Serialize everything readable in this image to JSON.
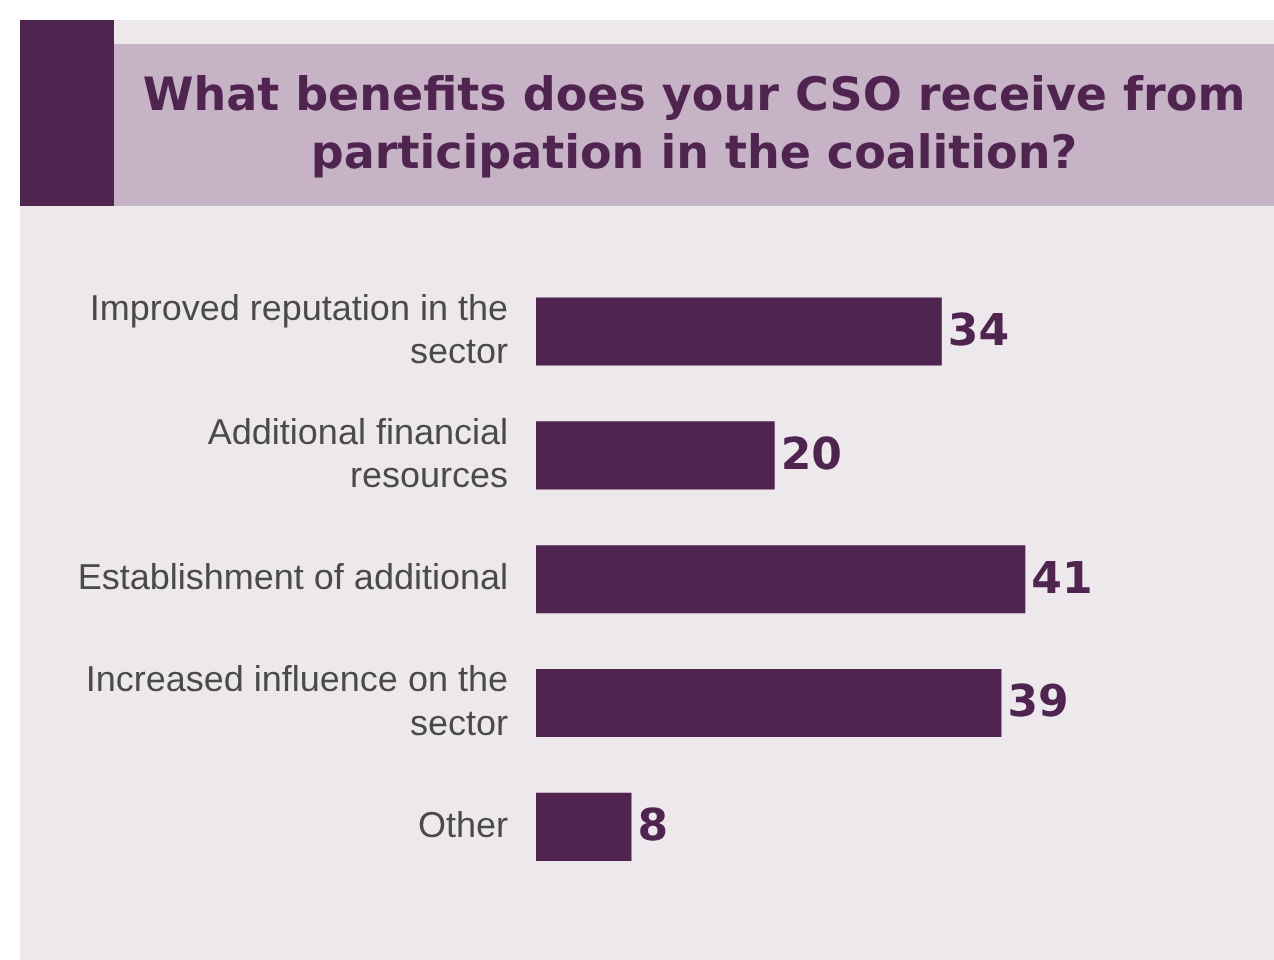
{
  "chart_data": {
    "type": "bar",
    "orientation": "horizontal",
    "title": "What benefits does your CSO receive from participation in the coalition?",
    "categories": [
      "Improved reputation in the sector",
      "Additional financial resources",
      "Establishment of additional",
      "Increased influence on the sector",
      "Other"
    ],
    "values": [
      34,
      20,
      41,
      39,
      8
    ],
    "color": "#4f2550",
    "data_labels": true,
    "grid": false,
    "legend": false,
    "tick_labels": "y"
  }
}
